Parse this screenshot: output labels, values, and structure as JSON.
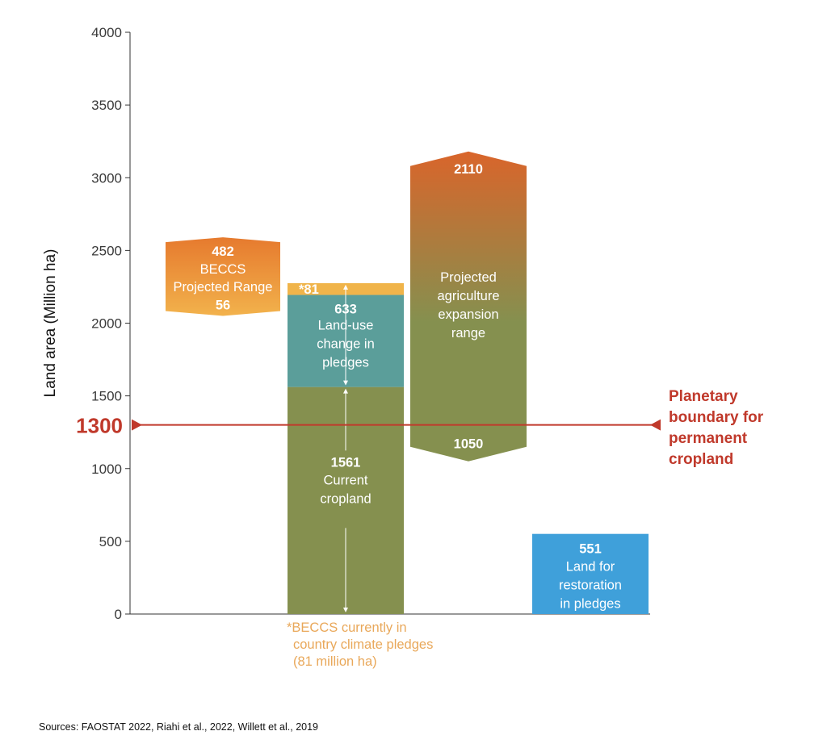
{
  "chart_data": {
    "type": "bar",
    "ylabel": "Land area (Million ha)",
    "ylim": [
      0,
      4000
    ],
    "yticks": [
      "0",
      "500",
      "1000",
      "1500",
      "2000",
      "2500",
      "3000",
      "3500",
      "4000"
    ],
    "grid": false,
    "bars": [
      {
        "key": "beccs",
        "range": [
          2050,
          2590
        ],
        "colors": [
          "#e67a2e",
          "#f2b24c"
        ],
        "value_top": "482",
        "value_bottom": "56",
        "label_lines": [
          "BECCS",
          "Projected Range"
        ]
      },
      {
        "key": "stack",
        "segments": [
          {
            "key": "cropland",
            "value": 1561,
            "color": "#85904f",
            "value_label": "1561",
            "label_lines": [
              "Current",
              "cropland"
            ]
          },
          {
            "key": "luc",
            "value": 633,
            "color": "#5b9e9a",
            "value_label": "633",
            "label_lines": [
              "Land-use",
              "change in",
              "pledges"
            ]
          },
          {
            "key": "beccs_pledged",
            "value": 81,
            "color": "#f0b44a",
            "value_label": "*81",
            "label_lines": []
          }
        ]
      },
      {
        "key": "agri",
        "range": [
          1050,
          3180
        ],
        "colors": [
          "#d9652b",
          "#85904f"
        ],
        "value_top": "2110",
        "value_bottom": "1050",
        "label_lines": [
          "Projected",
          "agriculture",
          "expansion",
          "range"
        ]
      },
      {
        "key": "restoration",
        "value": 551,
        "color": "#3fa0da",
        "value_label": "551",
        "label_lines": [
          "Land for",
          "restoration",
          "in pledges"
        ]
      }
    ],
    "reference_line": {
      "value": 1300,
      "value_label": "1300",
      "label_lines": [
        "Planetary",
        "boundary for",
        "permanent",
        "cropland"
      ],
      "color": "#c0392b"
    },
    "footnote_lines": [
      "*BECCS currently in",
      "country climate pledges",
      "(81 million ha)"
    ]
  },
  "source": "Sources: FAOSTAT 2022, Riahi et al., 2022,  Willett et al., 2019"
}
